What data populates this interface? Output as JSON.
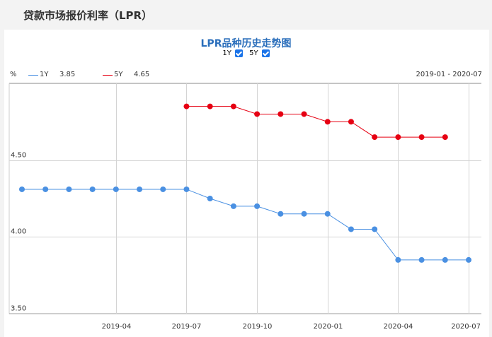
{
  "page": {
    "title": "贷款市场报价利率（LPR）"
  },
  "chart_data": {
    "type": "line",
    "title": "LPR品种历史走势图",
    "toggles": [
      {
        "label": "1Y",
        "checked": true
      },
      {
        "label": "5Y",
        "checked": true
      }
    ],
    "unit_label": "%",
    "date_range": "2019-01 - 2020-07",
    "legend": [
      {
        "name": "1Y",
        "latest": "3.85",
        "color": "#4a90e2"
      },
      {
        "name": "5Y",
        "latest": "4.65",
        "color": "#e60012"
      }
    ],
    "x": [
      "2018-12",
      "2019-01",
      "2019-02",
      "2019-03",
      "2019-04",
      "2019-05",
      "2019-06",
      "2019-07",
      "2019-08",
      "2019-09",
      "2019-10",
      "2019-11",
      "2019-12",
      "2020-01",
      "2020-02",
      "2020-03",
      "2020-04",
      "2020-05",
      "2020-06",
      "2020-07"
    ],
    "x_ticks": [
      "2019-04",
      "2019-07",
      "2019-10",
      "2020-01",
      "2020-04",
      "2020-07"
    ],
    "series": [
      {
        "name": "1Y",
        "color": "#4a90e2",
        "values": [
          4.31,
          4.31,
          4.31,
          4.31,
          4.31,
          4.31,
          4.31,
          4.31,
          4.25,
          4.2,
          4.2,
          4.15,
          4.15,
          4.15,
          4.05,
          4.05,
          3.85,
          3.85,
          3.85,
          3.85
        ]
      },
      {
        "name": "5Y",
        "color": "#e60012",
        "values": [
          null,
          null,
          null,
          null,
          null,
          null,
          null,
          4.85,
          4.85,
          4.85,
          4.8,
          4.8,
          4.8,
          4.75,
          4.75,
          4.65,
          4.65,
          4.65,
          4.65,
          null
        ]
      }
    ],
    "ylim": [
      3.5,
      5.0
    ],
    "y_ticks": [
      "4.50",
      "4.00",
      "3.50"
    ],
    "y_tick_values": [
      4.5,
      4.0,
      3.5
    ]
  }
}
